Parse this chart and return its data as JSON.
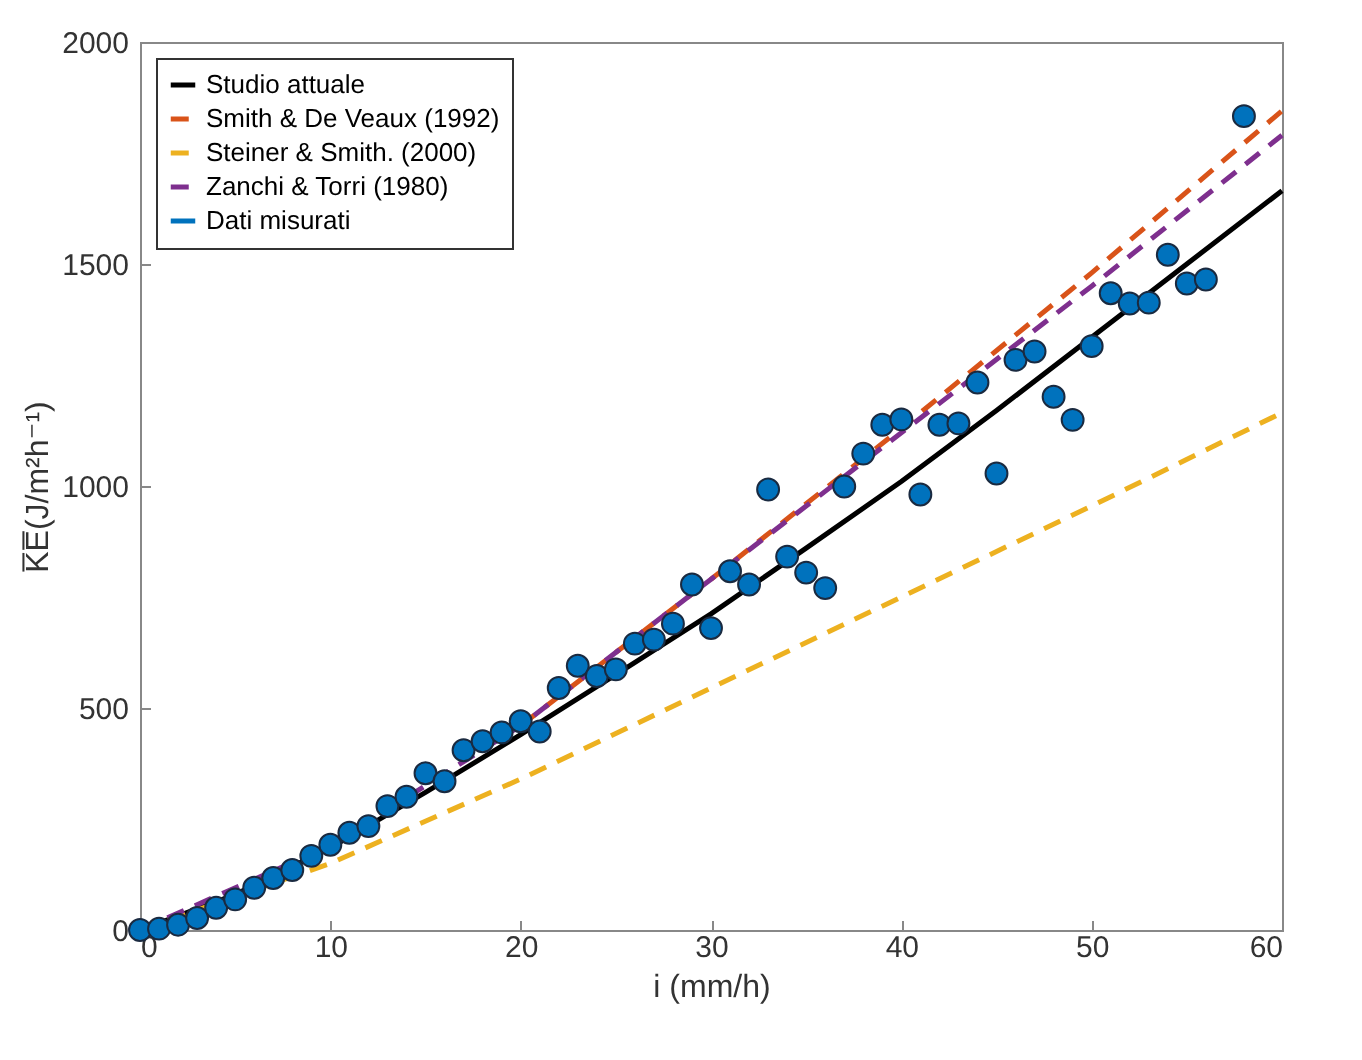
{
  "chart_data": {
    "type": "line",
    "xlabel": "i (mm/h)",
    "ylabel": "K̅E̅(J/m²h⁻¹)",
    "xlim": [
      0,
      60
    ],
    "ylim": [
      0,
      2000
    ],
    "xticks": [
      0,
      10,
      20,
      30,
      40,
      50,
      60
    ],
    "yticks": [
      0,
      500,
      1000,
      1500,
      2000
    ],
    "grid": false,
    "legend": "top left",
    "series": [
      {
        "name": "Studio attuale",
        "line_style": "solid",
        "color": "#000000",
        "x": [
          0,
          5,
          10,
          15,
          20,
          25,
          30,
          35,
          40,
          45,
          50,
          55,
          60
        ],
        "values": [
          0,
          80,
          185,
          310,
          440,
          575,
          712,
          860,
          1010,
          1170,
          1335,
          1500,
          1665
        ]
      },
      {
        "name": "Smith & De Veaux (1992)",
        "line_style": "dashed",
        "color": "#d95319",
        "x": [
          20,
          30,
          40,
          50,
          60
        ],
        "values": [
          460,
          790,
          1130,
          1480,
          1845
        ]
      },
      {
        "name": "Steiner & Smith. (2000)",
        "line_style": "dashed",
        "color": "#edb120",
        "x": [
          0,
          10,
          20,
          30,
          40,
          50,
          60
        ],
        "values": [
          0,
          150,
          340,
          545,
          750,
          955,
          1165
        ]
      },
      {
        "name": "Zanchi & Torri (1980)",
        "line_style": "dashed",
        "color": "#7e2f8e",
        "x": [
          0,
          10,
          20,
          30,
          40,
          50,
          60
        ],
        "values": [
          0,
          190,
          460,
          790,
          1120,
          1450,
          1790
        ]
      },
      {
        "name": "Dati misurati",
        "type": "scatter",
        "marker": "circle",
        "color": "#0072bd",
        "x": [
          0,
          1,
          2,
          3,
          4,
          5,
          6,
          7,
          8,
          9,
          10,
          11,
          12,
          13,
          14,
          15,
          16,
          17,
          18,
          19,
          20,
          21,
          22,
          23,
          24,
          25,
          26,
          27,
          28,
          29,
          30,
          31,
          32,
          33,
          34,
          35,
          36,
          37,
          38,
          39,
          40,
          41,
          42,
          43,
          44,
          45,
          46,
          47,
          48,
          49,
          50,
          51,
          52,
          53,
          54,
          55,
          56,
          58
        ],
        "values": [
          0,
          3,
          12,
          27,
          50,
          69,
          95,
          117,
          135,
          167,
          192,
          219,
          234,
          279,
          300,
          353,
          335,
          405,
          425,
          445,
          470,
          447,
          545,
          595,
          572,
          587,
          645,
          654,
          690,
          778,
          680,
          808,
          778,
          992,
          841,
          805,
          770,
          999,
          1073,
          1138,
          1150,
          981,
          1138,
          1141,
          1233,
          1028,
          1284,
          1303,
          1201,
          1149,
          1315,
          1434,
          1411,
          1413,
          1521,
          1456,
          1465,
          1833
        ]
      }
    ]
  }
}
